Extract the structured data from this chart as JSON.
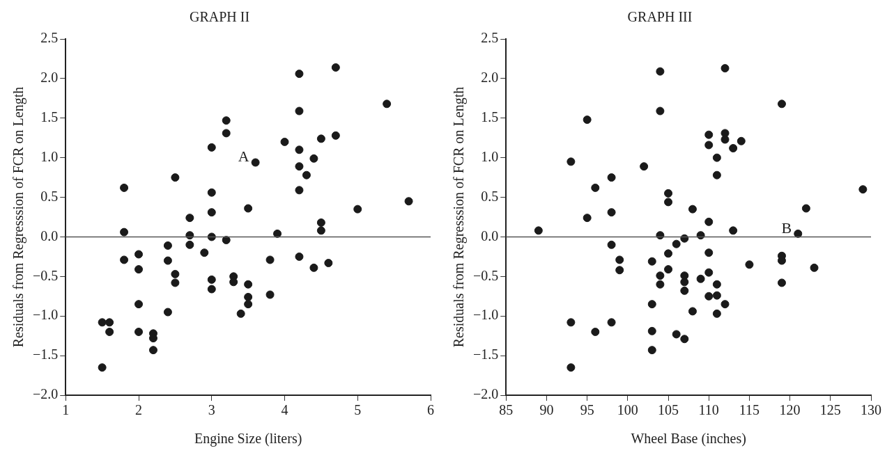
{
  "chart_data": [
    {
      "type": "scatter",
      "title": "GRAPH II",
      "xlabel": "Engine Size (liters)",
      "ylabel": "Residuals from Regresssion of FCR on Length",
      "color": "#1a1a1a",
      "marker": "circle",
      "grid": false,
      "legend": false,
      "x": [
        1.8,
        1.8,
        1.8,
        1.5,
        1.6,
        1.6,
        1.5,
        2.0,
        2.0,
        2.0,
        2.0,
        2.2,
        2.2,
        2.2,
        2.4,
        2.4,
        2.4,
        2.5,
        2.5,
        2.5,
        2.7,
        2.7,
        2.7,
        2.9,
        3.0,
        3.0,
        3.0,
        3.0,
        3.0,
        3.0,
        3.2,
        3.2,
        3.2,
        3.3,
        3.3,
        3.5,
        3.5,
        3.5,
        3.5,
        3.4,
        3.6,
        3.8,
        3.8,
        3.9,
        4.0,
        4.2,
        4.2,
        4.2,
        4.2,
        4.2,
        4.2,
        4.3,
        4.4,
        4.4,
        4.5,
        4.5,
        4.5,
        4.6,
        4.7,
        4.7,
        5.0,
        5.4,
        5.7
      ],
      "values": [
        0.62,
        0.06,
        -0.29,
        -1.08,
        -1.08,
        -1.2,
        -1.65,
        -0.22,
        -0.41,
        -0.85,
        -1.2,
        -1.22,
        -1.28,
        -1.43,
        -0.11,
        -0.3,
        -0.95,
        0.75,
        -0.47,
        -0.58,
        0.24,
        0.02,
        -0.1,
        -0.2,
        1.13,
        0.56,
        0.31,
        0.0,
        -0.54,
        -0.66,
        1.47,
        1.31,
        -0.04,
        -0.5,
        -0.57,
        0.36,
        -0.6,
        -0.76,
        -0.85,
        -0.97,
        0.94,
        -0.29,
        -0.73,
        0.04,
        1.2,
        2.06,
        1.59,
        1.1,
        0.89,
        0.59,
        -0.25,
        0.78,
        0.99,
        -0.39,
        1.24,
        0.18,
        0.08,
        -0.33,
        2.14,
        1.28,
        0.35,
        1.68,
        0.45
      ],
      "xlim": [
        1,
        6
      ],
      "xticks": [
        1,
        2,
        3,
        4,
        5,
        6
      ],
      "ylim": [
        -2,
        2.5
      ],
      "yticks": [
        {
          "value": -2,
          "label": "−2.0"
        },
        {
          "value": -1.5,
          "label": "−1.5"
        },
        {
          "value": -1,
          "label": "−1.0"
        },
        {
          "value": -0.5,
          "label": "−0.5"
        },
        {
          "value": 0,
          "label": "0.0"
        },
        {
          "value": 0.5,
          "label": "0.5"
        },
        {
          "value": 1,
          "label": "1.0"
        },
        {
          "value": 1.5,
          "label": "1.5"
        },
        {
          "value": 2,
          "label": "2.0"
        },
        {
          "value": 2.5,
          "label": "2.5"
        }
      ],
      "ref_lines": [
        {
          "axis": "y",
          "value": 0,
          "color": "#555555"
        }
      ],
      "annotations": [
        {
          "text": "A",
          "x": 3.6,
          "y": 0.94
        }
      ]
    },
    {
      "type": "scatter",
      "title": "GRAPH III",
      "xlabel": "Wheel Base (inches)",
      "ylabel": "Residuals from Regresssion of FCR on Length",
      "color": "#1a1a1a",
      "marker": "circle",
      "grid": false,
      "legend": false,
      "x": [
        89,
        93,
        93,
        93,
        95,
        95,
        96,
        96,
        98,
        98,
        98,
        98,
        99,
        99,
        102,
        103,
        103,
        103,
        103,
        104,
        104,
        104,
        104,
        104,
        105,
        105,
        105,
        105,
        106,
        106,
        107,
        107,
        107,
        107,
        107,
        108,
        108,
        109,
        109,
        110,
        110,
        110,
        110,
        110,
        110,
        111,
        111,
        111,
        111,
        111,
        112,
        112,
        112,
        112,
        113,
        113,
        114,
        115,
        119,
        119,
        119,
        119,
        121,
        122,
        123,
        129
      ],
      "values": [
        0.08,
        -1.65,
        -1.08,
        0.95,
        0.24,
        1.48,
        0.62,
        -1.2,
        0.75,
        0.31,
        -0.1,
        -1.08,
        -0.29,
        -0.42,
        0.89,
        -0.31,
        -0.85,
        -1.19,
        -1.43,
        2.09,
        1.59,
        0.02,
        -0.49,
        -0.6,
        0.55,
        0.44,
        -0.21,
        -0.41,
        -0.09,
        -1.23,
        -0.02,
        -0.49,
        -0.57,
        -0.68,
        -1.29,
        0.35,
        -0.94,
        0.02,
        -0.53,
        1.29,
        1.16,
        0.19,
        -0.2,
        -0.45,
        -0.75,
        1.0,
        0.78,
        -0.6,
        -0.74,
        -0.97,
        2.13,
        1.31,
        1.23,
        -0.85,
        1.12,
        0.08,
        1.21,
        -0.35,
        1.68,
        -0.24,
        -0.3,
        -0.58,
        0.04,
        0.36,
        -0.39,
        0.6
      ],
      "xlim": [
        85,
        130
      ],
      "xticks": [
        85,
        90,
        95,
        100,
        105,
        110,
        115,
        120,
        125,
        130
      ],
      "ylim": [
        -2,
        2.5
      ],
      "yticks": [
        {
          "value": -2,
          "label": "−2.0"
        },
        {
          "value": -1.5,
          "label": "−1.5"
        },
        {
          "value": -1,
          "label": "−1.0"
        },
        {
          "value": -0.5,
          "label": "−0.5"
        },
        {
          "value": 0,
          "label": "0.0"
        },
        {
          "value": 0.5,
          "label": "0.5"
        },
        {
          "value": 1,
          "label": "1.0"
        },
        {
          "value": 1.5,
          "label": "1.5"
        },
        {
          "value": 2,
          "label": "2.0"
        },
        {
          "value": 2.5,
          "label": "2.5"
        }
      ],
      "ref_lines": [
        {
          "axis": "y",
          "value": 0,
          "color": "#555555"
        }
      ],
      "annotations": [
        {
          "text": "B",
          "x": 121,
          "y": 0.04
        }
      ]
    }
  ]
}
